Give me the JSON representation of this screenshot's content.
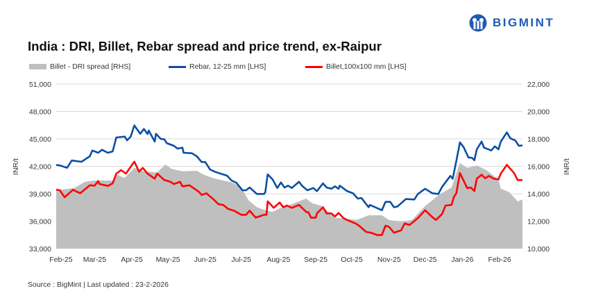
{
  "brand": {
    "logo_text": "BIGMINT",
    "color": "#1f5bb5"
  },
  "chart_data": {
    "type": "line",
    "title": "India : DRI, Billet, Rebar spread and price trend, ex-Raipur",
    "source": "Source : BigMint | Last updated : 23-2-2026",
    "ylabel_left": "INR/t",
    "ylabel_right": "INR/t",
    "ylim_left": [
      33000,
      51000
    ],
    "ylim_right": [
      10000,
      22000
    ],
    "yticks_left": [
      "51,000",
      "48,000",
      "45,000",
      "42,000",
      "39,000",
      "36,000",
      "33,000"
    ],
    "yticks_right": [
      "22,000",
      "20,000",
      "18,000",
      "16,000",
      "14,000",
      "12,000",
      "10,000"
    ],
    "xlim": [
      "2025-02-01",
      "2026-02-24"
    ],
    "xticks": [
      {
        "label": "Feb-25",
        "date": "2025-02-05"
      },
      {
        "label": "Mar-25",
        "date": "2025-03-05"
      },
      {
        "label": "Apr-25",
        "date": "2025-04-05"
      },
      {
        "label": "May-25",
        "date": "2025-05-05"
      },
      {
        "label": "Jun-25",
        "date": "2025-06-05"
      },
      {
        "label": "Jul-25",
        "date": "2025-07-05"
      },
      {
        "label": "Aug-25",
        "date": "2025-08-05"
      },
      {
        "label": "Sep-25",
        "date": "2025-09-05"
      },
      {
        "label": "Oct-25",
        "date": "2025-10-05"
      },
      {
        "label": "Nov-25",
        "date": "2025-11-05"
      },
      {
        "label": "Dec-25",
        "date": "2025-12-05"
      },
      {
        "label": "Jan-26",
        "date": "2026-01-05"
      },
      {
        "label": "Feb-26",
        "date": "2026-02-05"
      }
    ],
    "grid": true,
    "legend": "top",
    "series": [
      {
        "name": "Billet - DRI spread  [RHS]",
        "axis": "right",
        "kind": "area",
        "color": "#bfbfbf",
        "points": [
          [
            "2025-02-01",
            14290
          ],
          [
            "2025-02-04",
            14290
          ],
          [
            "2025-02-16",
            14420
          ],
          [
            "2025-02-25",
            14880
          ],
          [
            "2025-03-05",
            14960
          ],
          [
            "2025-03-20",
            14960
          ],
          [
            "2025-03-24",
            15380
          ],
          [
            "2025-03-30",
            15160
          ],
          [
            "2025-04-07",
            15890
          ],
          [
            "2025-04-15",
            15640
          ],
          [
            "2025-04-26",
            15550
          ],
          [
            "2025-05-03",
            16140
          ],
          [
            "2025-05-08",
            15810
          ],
          [
            "2025-05-17",
            15640
          ],
          [
            "2025-05-29",
            15670
          ],
          [
            "2025-06-04",
            15380
          ],
          [
            "2025-06-13",
            15100
          ],
          [
            "2025-06-27",
            14830
          ],
          [
            "2025-07-05",
            14460
          ],
          [
            "2025-07-11",
            13530
          ],
          [
            "2025-07-18",
            13020
          ],
          [
            "2025-07-25",
            12800
          ],
          [
            "2025-07-31",
            12680
          ],
          [
            "2025-08-08",
            13020
          ],
          [
            "2025-08-16",
            13240
          ],
          [
            "2025-08-28",
            13650
          ],
          [
            "2025-09-02",
            13310
          ],
          [
            "2025-09-10",
            13110
          ],
          [
            "2025-09-21",
            12260
          ],
          [
            "2025-10-09",
            12090
          ],
          [
            "2025-10-19",
            12430
          ],
          [
            "2025-10-30",
            12430
          ],
          [
            "2025-11-05",
            12090
          ],
          [
            "2025-11-15",
            11960
          ],
          [
            "2025-11-24",
            12090
          ],
          [
            "2025-12-05",
            13110
          ],
          [
            "2025-12-17",
            13950
          ],
          [
            "2025-12-27",
            14460
          ],
          [
            "2026-01-03",
            16230
          ],
          [
            "2026-01-09",
            15890
          ],
          [
            "2026-01-17",
            16060
          ],
          [
            "2026-01-25",
            15720
          ],
          [
            "2026-02-04",
            15050
          ],
          [
            "2026-02-06",
            14370
          ],
          [
            "2026-02-13",
            14120
          ],
          [
            "2026-02-20",
            13440
          ],
          [
            "2026-02-24",
            13580
          ]
        ]
      },
      {
        "name": "Rebar, 12-25 mm [LHS]",
        "axis": "left",
        "kind": "line",
        "color": "#0b4ea2",
        "points": [
          [
            "2025-02-01",
            42150
          ],
          [
            "2025-02-04",
            42100
          ],
          [
            "2025-02-10",
            41830
          ],
          [
            "2025-02-14",
            42640
          ],
          [
            "2025-02-22",
            42490
          ],
          [
            "2025-03-01",
            43100
          ],
          [
            "2025-03-03",
            43730
          ],
          [
            "2025-03-08",
            43480
          ],
          [
            "2025-03-11",
            43810
          ],
          [
            "2025-03-16",
            43480
          ],
          [
            "2025-03-20",
            43630
          ],
          [
            "2025-03-23",
            45150
          ],
          [
            "2025-03-30",
            45250
          ],
          [
            "2025-04-01",
            44850
          ],
          [
            "2025-04-04",
            45250
          ],
          [
            "2025-04-07",
            46470
          ],
          [
            "2025-04-12",
            45560
          ],
          [
            "2025-04-15",
            46090
          ],
          [
            "2025-04-18",
            45530
          ],
          [
            "2025-04-19",
            45910
          ],
          [
            "2025-04-24",
            44700
          ],
          [
            "2025-04-25",
            45560
          ],
          [
            "2025-04-29",
            45000
          ],
          [
            "2025-05-02",
            44950
          ],
          [
            "2025-05-04",
            44540
          ],
          [
            "2025-05-10",
            44240
          ],
          [
            "2025-05-13",
            43940
          ],
          [
            "2025-05-17",
            44040
          ],
          [
            "2025-05-18",
            43480
          ],
          [
            "2025-05-25",
            43430
          ],
          [
            "2025-05-29",
            43100
          ],
          [
            "2025-06-02",
            42470
          ],
          [
            "2025-06-05",
            42470
          ],
          [
            "2025-06-09",
            41660
          ],
          [
            "2025-06-13",
            41410
          ],
          [
            "2025-06-19",
            41150
          ],
          [
            "2025-06-23",
            41000
          ],
          [
            "2025-06-27",
            40440
          ],
          [
            "2025-07-01",
            40190
          ],
          [
            "2025-07-06",
            39380
          ],
          [
            "2025-07-09",
            39380
          ],
          [
            "2025-07-12",
            39680
          ],
          [
            "2025-07-18",
            38980
          ],
          [
            "2025-07-24",
            38980
          ],
          [
            "2025-07-25",
            39180
          ],
          [
            "2025-07-27",
            41130
          ],
          [
            "2025-07-31",
            40570
          ],
          [
            "2025-08-04",
            39630
          ],
          [
            "2025-08-07",
            40240
          ],
          [
            "2025-08-10",
            39680
          ],
          [
            "2025-08-13",
            39890
          ],
          [
            "2025-08-16",
            39630
          ],
          [
            "2025-08-22",
            40310
          ],
          [
            "2025-08-25",
            39810
          ],
          [
            "2025-08-29",
            39380
          ],
          [
            "2025-09-03",
            39630
          ],
          [
            "2025-09-06",
            39280
          ],
          [
            "2025-09-11",
            40140
          ],
          [
            "2025-09-14",
            39680
          ],
          [
            "2025-09-18",
            39550
          ],
          [
            "2025-09-21",
            39810
          ],
          [
            "2025-09-24",
            39550
          ],
          [
            "2025-09-25",
            39890
          ],
          [
            "2025-10-01",
            39300
          ],
          [
            "2025-10-06",
            39050
          ],
          [
            "2025-10-10",
            38470
          ],
          [
            "2025-10-13",
            38540
          ],
          [
            "2025-10-19",
            37530
          ],
          [
            "2025-10-20",
            37780
          ],
          [
            "2025-10-30",
            37200
          ],
          [
            "2025-11-02",
            38110
          ],
          [
            "2025-11-06",
            38110
          ],
          [
            "2025-11-09",
            37530
          ],
          [
            "2025-11-12",
            37610
          ],
          [
            "2025-11-19",
            38420
          ],
          [
            "2025-11-26",
            38370
          ],
          [
            "2025-11-29",
            38980
          ],
          [
            "2025-12-05",
            39550
          ],
          [
            "2025-12-11",
            39050
          ],
          [
            "2025-12-16",
            38980
          ],
          [
            "2025-12-19",
            39740
          ],
          [
            "2025-12-26",
            40950
          ],
          [
            "2025-12-28",
            40650
          ],
          [
            "2025-12-31",
            42590
          ],
          [
            "2026-01-03",
            44620
          ],
          [
            "2026-01-06",
            44110
          ],
          [
            "2026-01-10",
            42970
          ],
          [
            "2026-01-13",
            42930
          ],
          [
            "2026-01-15",
            42670
          ],
          [
            "2026-01-17",
            43860
          ],
          [
            "2026-01-21",
            44700
          ],
          [
            "2026-01-23",
            44040
          ],
          [
            "2026-01-29",
            43730
          ],
          [
            "2026-02-01",
            44190
          ],
          [
            "2026-02-04",
            43860
          ],
          [
            "2026-02-06",
            44700
          ],
          [
            "2026-02-11",
            45710
          ],
          [
            "2026-02-14",
            45050
          ],
          [
            "2026-02-18",
            44830
          ],
          [
            "2026-02-21",
            44240
          ],
          [
            "2026-02-24",
            44290
          ]
        ]
      },
      {
        "name": "Billet,100x100 mm [LHS]",
        "axis": "left",
        "kind": "line",
        "color": "#ff0000",
        "points": [
          [
            "2025-02-01",
            39450
          ],
          [
            "2025-02-04",
            39380
          ],
          [
            "2025-02-08",
            38620
          ],
          [
            "2025-02-15",
            39430
          ],
          [
            "2025-02-21",
            39050
          ],
          [
            "2025-03-01",
            39930
          ],
          [
            "2025-03-05",
            39890
          ],
          [
            "2025-03-08",
            40390
          ],
          [
            "2025-03-09",
            40060
          ],
          [
            "2025-03-16",
            39860
          ],
          [
            "2025-03-20",
            40140
          ],
          [
            "2025-03-23",
            41200
          ],
          [
            "2025-03-27",
            41580
          ],
          [
            "2025-03-31",
            41200
          ],
          [
            "2025-04-07",
            42520
          ],
          [
            "2025-04-11",
            41410
          ],
          [
            "2025-04-14",
            41830
          ],
          [
            "2025-04-18",
            41200
          ],
          [
            "2025-04-24",
            40650
          ],
          [
            "2025-04-26",
            41200
          ],
          [
            "2025-05-02",
            40500
          ],
          [
            "2025-05-07",
            40310
          ],
          [
            "2025-05-10",
            40060
          ],
          [
            "2025-05-15",
            40310
          ],
          [
            "2025-05-17",
            39810
          ],
          [
            "2025-05-23",
            39930
          ],
          [
            "2025-05-31",
            39180
          ],
          [
            "2025-06-02",
            38870
          ],
          [
            "2025-06-06",
            39050
          ],
          [
            "2025-06-12",
            38370
          ],
          [
            "2025-06-16",
            37860
          ],
          [
            "2025-06-20",
            37780
          ],
          [
            "2025-06-24",
            37350
          ],
          [
            "2025-06-29",
            37150
          ],
          [
            "2025-07-05",
            36700
          ],
          [
            "2025-07-09",
            36700
          ],
          [
            "2025-07-12",
            37150
          ],
          [
            "2025-07-17",
            36390
          ],
          [
            "2025-07-24",
            36700
          ],
          [
            "2025-07-26",
            36700
          ],
          [
            "2025-07-27",
            38170
          ],
          [
            "2025-08-01",
            37460
          ],
          [
            "2025-08-06",
            38040
          ],
          [
            "2025-08-09",
            37530
          ],
          [
            "2025-08-12",
            37710
          ],
          [
            "2025-08-16",
            37460
          ],
          [
            "2025-08-22",
            37780
          ],
          [
            "2025-08-28",
            37020
          ],
          [
            "2025-08-30",
            36950
          ],
          [
            "2025-09-01",
            36390
          ],
          [
            "2025-09-05",
            36390
          ],
          [
            "2025-09-06",
            36850
          ],
          [
            "2025-09-11",
            37530
          ],
          [
            "2025-09-14",
            36850
          ],
          [
            "2025-09-18",
            36850
          ],
          [
            "2025-09-21",
            36520
          ],
          [
            "2025-09-24",
            36900
          ],
          [
            "2025-09-28",
            36340
          ],
          [
            "2025-10-01",
            36140
          ],
          [
            "2025-10-08",
            35760
          ],
          [
            "2025-10-11",
            35510
          ],
          [
            "2025-10-17",
            34820
          ],
          [
            "2025-10-21",
            34740
          ],
          [
            "2025-10-26",
            34490
          ],
          [
            "2025-10-30",
            34490
          ],
          [
            "2025-11-02",
            35510
          ],
          [
            "2025-11-05",
            35380
          ],
          [
            "2025-11-09",
            34740
          ],
          [
            "2025-11-15",
            35000
          ],
          [
            "2025-11-18",
            35760
          ],
          [
            "2025-11-22",
            35580
          ],
          [
            "2025-11-29",
            36340
          ],
          [
            "2025-12-05",
            37200
          ],
          [
            "2025-12-11",
            36440
          ],
          [
            "2025-12-14",
            36140
          ],
          [
            "2025-12-19",
            36770
          ],
          [
            "2025-12-22",
            37710
          ],
          [
            "2025-12-27",
            37780
          ],
          [
            "2025-12-29",
            38670
          ],
          [
            "2025-12-31",
            39050
          ],
          [
            "2026-01-03",
            41260
          ],
          [
            "2026-01-09",
            39630
          ],
          [
            "2026-01-12",
            39680
          ],
          [
            "2026-01-15",
            39300
          ],
          [
            "2026-01-17",
            40650
          ],
          [
            "2026-01-21",
            41080
          ],
          [
            "2026-01-24",
            40690
          ],
          [
            "2026-01-27",
            40950
          ],
          [
            "2026-01-31",
            40650
          ],
          [
            "2026-02-04",
            40570
          ],
          [
            "2026-02-06",
            41200
          ],
          [
            "2026-02-11",
            42170
          ],
          [
            "2026-02-17",
            41260
          ],
          [
            "2026-02-20",
            40500
          ],
          [
            "2026-02-24",
            40500
          ]
        ]
      }
    ]
  }
}
